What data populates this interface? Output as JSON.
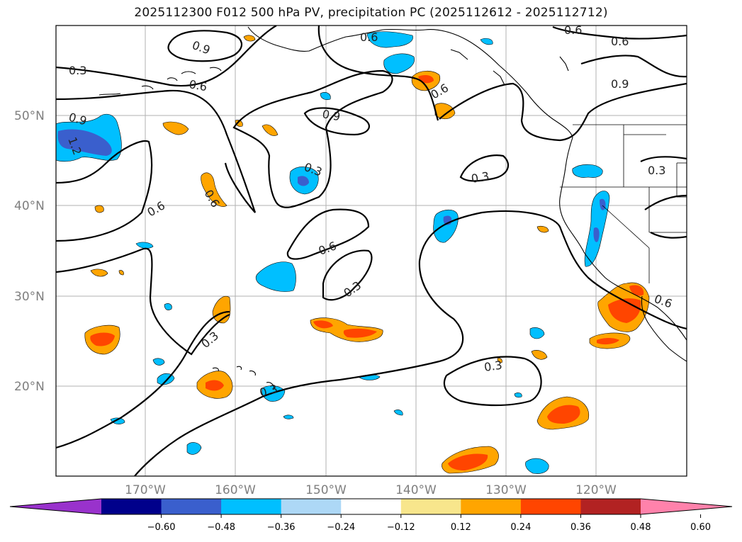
{
  "title": "2025112300 F012 500 hPa PV, precipitation PC (2025112612 - 2025112712)",
  "colors": {
    "light_blue": "#add8f6",
    "cyan": "#00bfff",
    "royal": "#3a5fcd",
    "navy": "#00008b",
    "purple": "#9932cc",
    "yellow": "#f8e68c",
    "orange": "#ffa500",
    "red_orange": "#ff4500",
    "firebrick": "#b22222",
    "pink": "#ff82ab",
    "grid": "#b0b0b0",
    "label_gray": "#7f7f7f"
  },
  "map": {
    "lat_labels": [
      "50°N",
      "40°N",
      "30°N",
      "20°N"
    ],
    "lon_labels": [
      "170°W",
      "160°W",
      "150°W",
      "140°W",
      "130°W",
      "120°W"
    ],
    "contour_labels": [
      "0.3",
      "0.3",
      "0.3",
      "0.3",
      "0.3",
      "0.3",
      "0.3",
      "0.3",
      "0.6",
      "0.6",
      "0.6",
      "0.6",
      "0.6",
      "0.6",
      "0.6",
      "0.6",
      "0.6",
      "0.9",
      "0.9",
      "0.9",
      "0.9",
      "1.2"
    ]
  },
  "colorbar": {
    "ticks": [
      "−0.60",
      "−0.48",
      "−0.36",
      "−0.24",
      "−0.12",
      "0.12",
      "0.24",
      "0.36",
      "0.48",
      "0.60"
    ],
    "bins": [
      "purple",
      "navy",
      "royal",
      "cyan",
      "light_blue",
      "white",
      "yellow",
      "orange",
      "red_orange",
      "firebrick",
      "pink"
    ]
  }
}
